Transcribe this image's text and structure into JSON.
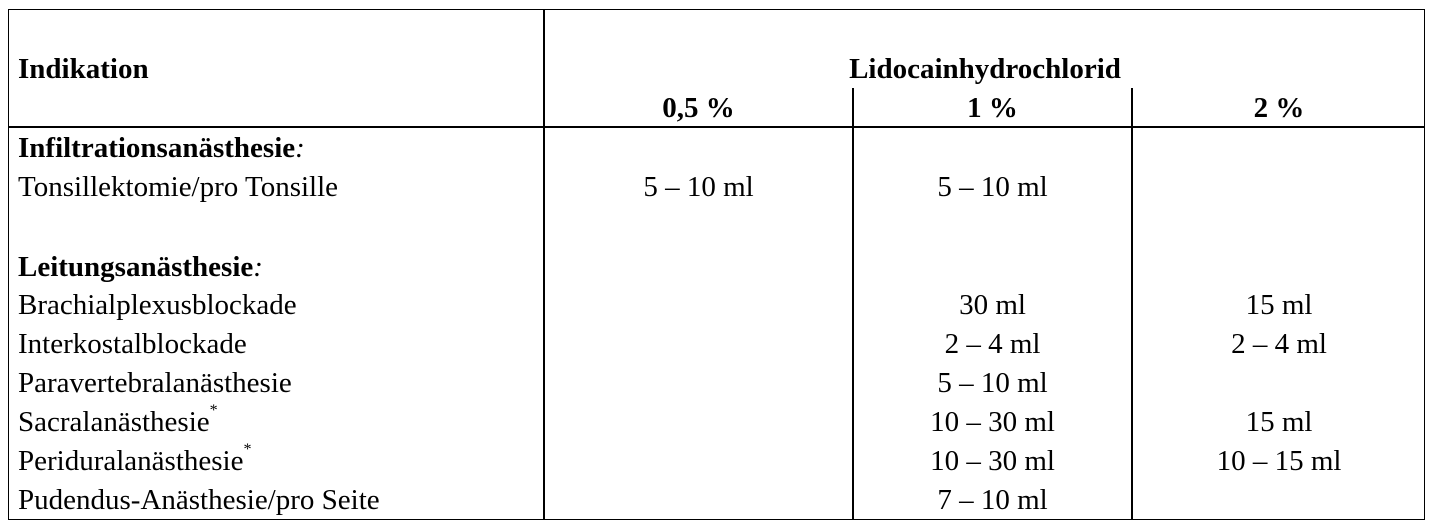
{
  "header": {
    "indication_label": "Indikation",
    "substance_label": "Lidocainhydrochlorid",
    "concentrations": [
      "0,5 %",
      "1 %",
      "2 %"
    ]
  },
  "sections": [
    {
      "title": "Infiltrationsanästhesie",
      "title_suffix": ":",
      "rows": [
        {
          "label": "Tonsillektomie/pro Tonsille",
          "mark": "",
          "c05": "5 – 10 ml",
          "c1": "5 – 10 ml",
          "c2": ""
        }
      ]
    },
    {
      "title": "Leitungsanästhesie",
      "title_suffix": ":",
      "rows": [
        {
          "label": "Brachialplexusblockade",
          "mark": "",
          "c05": "",
          "c1": "30 ml",
          "c2": "15 ml"
        },
        {
          "label": "Interkostalblockade",
          "mark": "",
          "c05": "",
          "c1": "2 – 4 ml",
          "c2": "2 – 4 ml"
        },
        {
          "label": "Paravertebralanästhesie",
          "mark": "",
          "c05": "",
          "c1": "5 – 10 ml",
          "c2": ""
        },
        {
          "label": "Sacralanästhesie",
          "mark": "*",
          "c05": "",
          "c1": "10 – 30 ml",
          "c2": "15 ml"
        },
        {
          "label": "Periduralanästhesie",
          "mark": "*",
          "c05": "",
          "c1": "10 – 30 ml",
          "c2": "10 – 15 ml"
        },
        {
          "label": "Pudendus-Anästhesie/pro Seite",
          "mark": "",
          "c05": "",
          "c1": "7 – 10 ml",
          "c2": ""
        }
      ]
    }
  ]
}
